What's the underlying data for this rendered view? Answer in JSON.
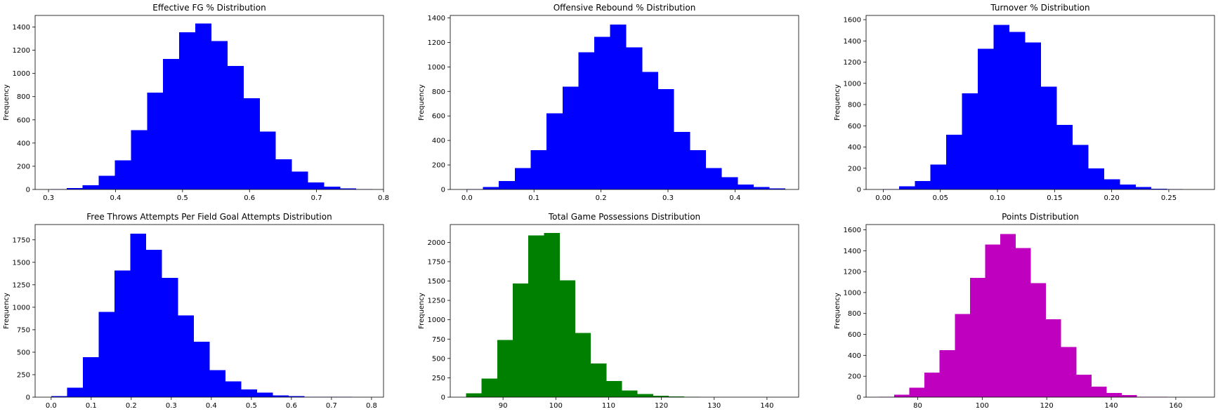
{
  "chart_data": [
    {
      "type": "bar",
      "subtype": "histogram",
      "title": "Effective FG % Distribution",
      "ylabel": "Frequency",
      "color": "#0000ff",
      "xlim": [
        0.28,
        0.8
      ],
      "ylim": [
        0,
        1500
      ],
      "xticks": [
        0.3,
        0.4,
        0.5,
        0.6,
        0.7,
        0.8
      ],
      "xtick_labels": [
        "0.3",
        "0.4",
        "0.5",
        "0.6",
        "0.7",
        "0.8"
      ],
      "yticks": [
        0,
        200,
        400,
        600,
        800,
        1000,
        1200,
        1400
      ],
      "ytick_labels": [
        "0",
        "200",
        "400",
        "600",
        "800",
        "1000",
        "1200",
        "1400"
      ],
      "bin_edges": [
        0.303,
        0.327,
        0.351,
        0.375,
        0.399,
        0.423,
        0.447,
        0.471,
        0.495,
        0.519,
        0.543,
        0.567,
        0.591,
        0.615,
        0.639,
        0.663,
        0.687,
        0.711,
        0.735,
        0.759,
        0.783
      ],
      "values": [
        2,
        12,
        35,
        118,
        250,
        510,
        835,
        1125,
        1355,
        1430,
        1280,
        1065,
        785,
        500,
        260,
        155,
        60,
        25,
        8,
        2
      ]
    },
    {
      "type": "bar",
      "subtype": "histogram",
      "title": "Offensive Rebound % Distribution",
      "ylabel": "Frequency",
      "color": "#0000ff",
      "xlim": [
        -0.025,
        0.495
      ],
      "ylim": [
        0,
        1420
      ],
      "xticks": [
        0.0,
        0.1,
        0.2,
        0.3,
        0.4
      ],
      "xtick_labels": [
        "0.0",
        "0.1",
        "0.2",
        "0.3",
        "0.4"
      ],
      "yticks": [
        0,
        200,
        400,
        600,
        800,
        1000,
        1200,
        1400
      ],
      "ytick_labels": [
        "0",
        "200",
        "400",
        "600",
        "800",
        "1000",
        "1200",
        "1400"
      ],
      "bin_edges": [
        0.0,
        0.02375,
        0.0475,
        0.07125,
        0.095,
        0.11875,
        0.1425,
        0.16625,
        0.19,
        0.21375,
        0.2375,
        0.26125,
        0.285,
        0.30875,
        0.3325,
        0.35625,
        0.38,
        0.40375,
        0.4275,
        0.45125,
        0.475
      ],
      "values": [
        2,
        20,
        70,
        175,
        320,
        620,
        840,
        1120,
        1245,
        1345,
        1160,
        960,
        820,
        470,
        320,
        175,
        100,
        40,
        20,
        8
      ]
    },
    {
      "type": "bar",
      "subtype": "histogram",
      "title": "Turnover % Distribution",
      "ylabel": "Frequency",
      "color": "#0000ff",
      "xlim": [
        -0.015,
        0.29
      ],
      "ylim": [
        0,
        1640
      ],
      "xticks": [
        0.0,
        0.05,
        0.1,
        0.15,
        0.2,
        0.25
      ],
      "xtick_labels": [
        "0.00",
        "0.05",
        "0.10",
        "0.15",
        "0.20",
        "0.25"
      ],
      "yticks": [
        0,
        200,
        400,
        600,
        800,
        1000,
        1200,
        1400,
        1600
      ],
      "ytick_labels": [
        "0",
        "200",
        "400",
        "600",
        "800",
        "1000",
        "1200",
        "1400",
        "1600"
      ],
      "bin_edges": [
        0.0,
        0.0138,
        0.0276,
        0.0414,
        0.0552,
        0.069,
        0.0828,
        0.0966,
        0.1104,
        0.1242,
        0.138,
        0.1518,
        0.1656,
        0.1794,
        0.1932,
        0.207,
        0.2208,
        0.2346,
        0.2484,
        0.2622,
        0.276
      ],
      "values": [
        2,
        30,
        80,
        235,
        515,
        905,
        1325,
        1550,
        1485,
        1385,
        970,
        610,
        420,
        200,
        95,
        45,
        22,
        8,
        2,
        1
      ]
    },
    {
      "type": "bar",
      "subtype": "histogram",
      "title": "Free Throws Attempts Per Field Goal Attempts Distribution",
      "ylabel": "Frequency",
      "color": "#0000ff",
      "xlim": [
        -0.04,
        0.83
      ],
      "ylim": [
        0,
        1920
      ],
      "xticks": [
        0.0,
        0.1,
        0.2,
        0.3,
        0.4,
        0.5,
        0.6,
        0.7,
        0.8
      ],
      "xtick_labels": [
        "0.0",
        "0.1",
        "0.2",
        "0.3",
        "0.4",
        "0.5",
        "0.6",
        "0.7",
        "0.8"
      ],
      "yticks": [
        0,
        250,
        500,
        750,
        1000,
        1250,
        1500,
        1750
      ],
      "ytick_labels": [
        "0",
        "250",
        "500",
        "750",
        "1000",
        "1250",
        "1500",
        "1750"
      ],
      "bin_edges": [
        0.0,
        0.0395,
        0.079,
        0.1185,
        0.158,
        0.1975,
        0.237,
        0.2765,
        0.316,
        0.3555,
        0.395,
        0.4345,
        0.474,
        0.5135,
        0.553,
        0.5925,
        0.632,
        0.6715,
        0.711,
        0.7505,
        0.79
      ],
      "values": [
        10,
        105,
        445,
        950,
        1410,
        1820,
        1640,
        1325,
        910,
        615,
        300,
        175,
        85,
        50,
        20,
        10,
        5,
        3,
        2,
        1
      ]
    },
    {
      "type": "bar",
      "subtype": "histogram",
      "title": "Total Game Possessions Distribution",
      "ylabel": "Frequency",
      "color": "#008000",
      "xlim": [
        80.0,
        146.0
      ],
      "ylim": [
        0,
        2230
      ],
      "xticks": [
        90,
        100,
        110,
        120,
        130,
        140
      ],
      "xtick_labels": [
        "90",
        "100",
        "110",
        "120",
        "130",
        "140"
      ],
      "yticks": [
        0,
        250,
        500,
        750,
        1000,
        1250,
        1500,
        1750,
        2000
      ],
      "ytick_labels": [
        "0",
        "250",
        "500",
        "750",
        "1000",
        "1250",
        "1500",
        "1750",
        "2000"
      ],
      "bin_edges": [
        83.0,
        85.95,
        88.9,
        91.85,
        94.8,
        97.75,
        100.7,
        103.65,
        106.6,
        109.55,
        112.5,
        115.45,
        118.4,
        121.35,
        124.3,
        127.25,
        130.2,
        133.15,
        136.1,
        139.05,
        142.0
      ],
      "values": [
        50,
        240,
        740,
        1470,
        2090,
        2120,
        1510,
        830,
        435,
        210,
        85,
        40,
        20,
        10,
        3,
        2,
        1,
        0,
        0,
        1
      ]
    },
    {
      "type": "bar",
      "subtype": "histogram",
      "title": "Points Distribution",
      "ylabel": "Frequency",
      "color": "#bf00bf",
      "xlim": [
        64.0,
        172.0
      ],
      "ylim": [
        0,
        1650
      ],
      "xticks": [
        80,
        100,
        120,
        140,
        160
      ],
      "xtick_labels": [
        "80",
        "100",
        "120",
        "140",
        "160"
      ],
      "yticks": [
        0,
        200,
        400,
        600,
        800,
        1000,
        1200,
        1400,
        1600
      ],
      "ytick_labels": [
        "0",
        "200",
        "400",
        "600",
        "800",
        "1000",
        "1200",
        "1400",
        "1600"
      ],
      "bin_edges": [
        68.0,
        72.7,
        77.4,
        82.1,
        86.8,
        91.5,
        96.2,
        100.9,
        105.6,
        110.3,
        115.0,
        119.7,
        124.4,
        129.1,
        133.8,
        138.5,
        143.2,
        147.9,
        152.6,
        157.3,
        162.0
      ],
      "values": [
        5,
        25,
        90,
        235,
        450,
        795,
        1140,
        1460,
        1560,
        1425,
        1090,
        745,
        480,
        215,
        100,
        40,
        20,
        5,
        2,
        1
      ]
    }
  ]
}
